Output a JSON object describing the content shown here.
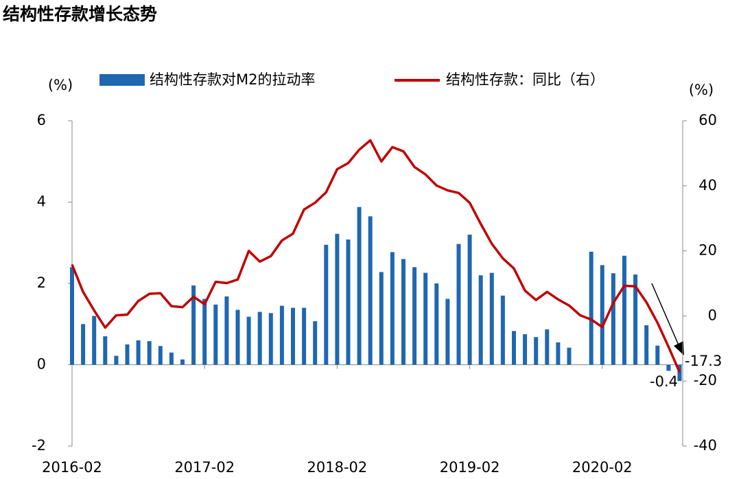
{
  "chart_data": {
    "type": "bar-line",
    "title": "结构性存款增长态势",
    "y_label": "(%)",
    "y2_label": "(%)",
    "categories": [
      "2016-02",
      null,
      null,
      null,
      null,
      null,
      null,
      null,
      null,
      null,
      null,
      null,
      "2017-02",
      null,
      null,
      null,
      null,
      null,
      null,
      null,
      null,
      null,
      null,
      null,
      "2018-02",
      null,
      null,
      null,
      null,
      null,
      null,
      null,
      null,
      null,
      null,
      null,
      "2019-02",
      null,
      null,
      null,
      null,
      null,
      null,
      null,
      null,
      null,
      null,
      null,
      "2020-02",
      null,
      null,
      null,
      null,
      null,
      null,
      null
    ],
    "series": [
      {
        "name": "结构性存款对M2的拉动率",
        "type": "bar",
        "color": "#1f67b1",
        "axis": "y",
        "values": [
          2.4,
          1.0,
          1.2,
          0.7,
          0.22,
          0.5,
          0.6,
          0.58,
          0.46,
          0.3,
          0.13,
          1.95,
          1.62,
          1.48,
          1.68,
          1.35,
          1.18,
          1.3,
          1.27,
          1.45,
          1.4,
          1.4,
          1.07,
          2.95,
          3.22,
          3.08,
          3.88,
          3.65,
          2.28,
          2.77,
          2.6,
          2.4,
          2.26,
          2.0,
          1.62,
          2.97,
          3.2,
          2.2,
          2.26,
          1.7,
          0.83,
          0.75,
          0.68,
          0.87,
          0.55,
          0.42,
          0.0,
          2.78,
          2.45,
          2.25,
          2.68,
          2.22,
          0.97,
          0.47,
          -0.15,
          -0.4
        ]
      },
      {
        "name": "结构性存款：同比（右）",
        "type": "line",
        "color": "#c00000",
        "axis": "y2",
        "values": [
          15.8,
          7.4,
          1.7,
          -3.6,
          0.2,
          0.4,
          4.6,
          6.8,
          7.0,
          3.0,
          2.7,
          5.9,
          3.6,
          10.5,
          10.1,
          11.2,
          20.0,
          16.7,
          18.4,
          23.2,
          25.3,
          32.7,
          34.8,
          38.0,
          45.1,
          47.0,
          51.1,
          54.0,
          47.5,
          51.9,
          50.6,
          45.8,
          43.5,
          40.1,
          38.6,
          37.8,
          34.8,
          28.3,
          22.2,
          17.7,
          14.6,
          7.8,
          4.9,
          7.4,
          5.1,
          3.2,
          0.2,
          -1.1,
          -3.4,
          4.0,
          9.3,
          9.1,
          4.2,
          -2.1,
          -9.5,
          -17.3
        ]
      }
    ],
    "ylim": [
      -2,
      6
    ],
    "yticks": [
      -2,
      0,
      2,
      4,
      6
    ],
    "y2lim": [
      -40,
      60
    ],
    "y2ticks": [
      -40,
      -20,
      0,
      20,
      40,
      60
    ]
  }
}
